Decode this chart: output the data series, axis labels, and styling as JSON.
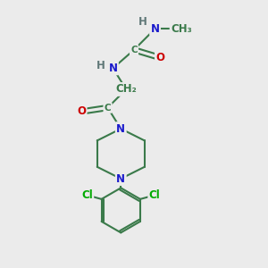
{
  "background_color": "#ebebeb",
  "bond_color": "#3a7a4a",
  "bond_width": 1.5,
  "atom_colors": {
    "N": "#1a1acc",
    "O": "#cc0000",
    "C": "#3a7a4a",
    "Cl": "#00aa00",
    "H": "#607878"
  },
  "font_size": 8.5,
  "fig_size": [
    3.0,
    3.0
  ],
  "xlim": [
    0,
    10
  ],
  "ylim": [
    0,
    10
  ]
}
